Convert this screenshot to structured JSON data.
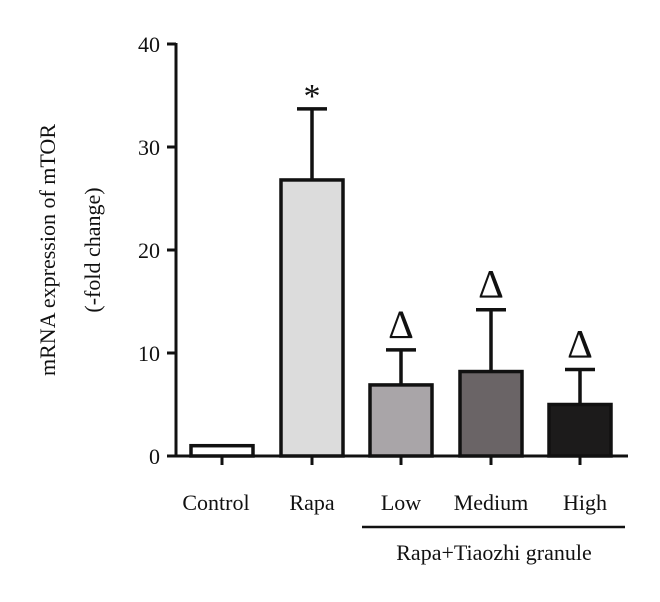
{
  "chart_data": {
    "type": "bar",
    "categories": [
      "Control",
      "Rapa",
      "Low",
      "Medium",
      "High"
    ],
    "values": [
      1.0,
      26.8,
      6.9,
      8.2,
      5.0
    ],
    "errors": [
      0.3,
      6.9,
      3.4,
      6.0,
      3.4
    ],
    "bar_colors": [
      "#ffffff",
      "#dcdcdc",
      "#a9a5a8",
      "#6a6466",
      "#1c1b1b"
    ],
    "annotations": [
      "",
      "*",
      "Δ",
      "Δ",
      "Δ"
    ],
    "ylabel_line1": "mRNA expression of mTOR",
    "ylabel_line2": "(-fold change)",
    "yticks": [
      0,
      10,
      20,
      30,
      40
    ],
    "ylim": [
      0,
      40
    ],
    "group_label": "Rapa+Tiaozhi granule",
    "grid": false
  }
}
